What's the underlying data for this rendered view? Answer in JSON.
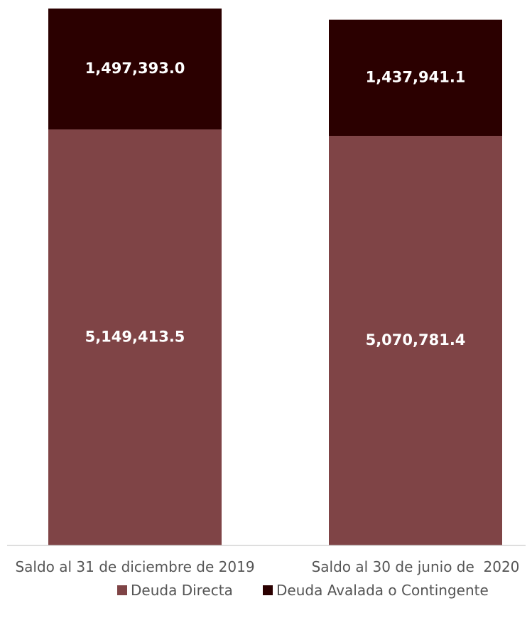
{
  "chart_data": {
    "type": "bar",
    "stacked": true,
    "categories": [
      "Saldo al 31 de diciembre de 2019",
      "Saldo al 30 de junio de  2020"
    ],
    "series": [
      {
        "name": "Deuda Directa",
        "color": "#7f4446",
        "values": [
          5149413.5,
          5070781.4
        ],
        "labels": [
          "5,149,413.5",
          "5,070,781.4"
        ]
      },
      {
        "name": "Deuda Avalada o Contingente",
        "color": "#2b0000",
        "values": [
          1497393.0,
          1437941.1
        ],
        "labels": [
          "1,497,393.0",
          "1,437,941.1"
        ]
      }
    ],
    "ylim": [
      0,
      6650000
    ],
    "grid": false,
    "legend_position": "bottom"
  }
}
